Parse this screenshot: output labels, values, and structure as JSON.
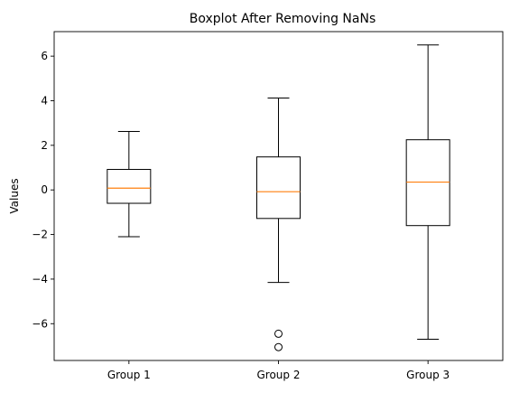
{
  "chart_data": {
    "type": "boxplot",
    "title": "Boxplot After Removing NaNs",
    "xlabel": "",
    "ylabel": "Values",
    "ylim": [
      -7.65,
      7.1
    ],
    "yticks": [
      -6,
      -4,
      -2,
      0,
      2,
      4,
      6
    ],
    "grid": false,
    "categories": [
      "Group 1",
      "Group 2",
      "Group 3"
    ],
    "boxes": [
      {
        "name": "Group 1",
        "whisker_low": -2.1,
        "q1": -0.6,
        "median": 0.08,
        "q3": 0.92,
        "whisker_high": 2.62,
        "outliers": []
      },
      {
        "name": "Group 2",
        "whisker_low": -4.15,
        "q1": -1.28,
        "median": -0.08,
        "q3": 1.48,
        "whisker_high": 4.12,
        "outliers": [
          -6.45,
          -7.05
        ]
      },
      {
        "name": "Group 3",
        "whisker_low": -6.7,
        "q1": -1.6,
        "median": 0.35,
        "q3": 2.25,
        "whisker_high": 6.5,
        "outliers": []
      }
    ],
    "colors": {
      "box": "#000000",
      "median": "#ff7f0e",
      "background": "#ffffff"
    }
  }
}
